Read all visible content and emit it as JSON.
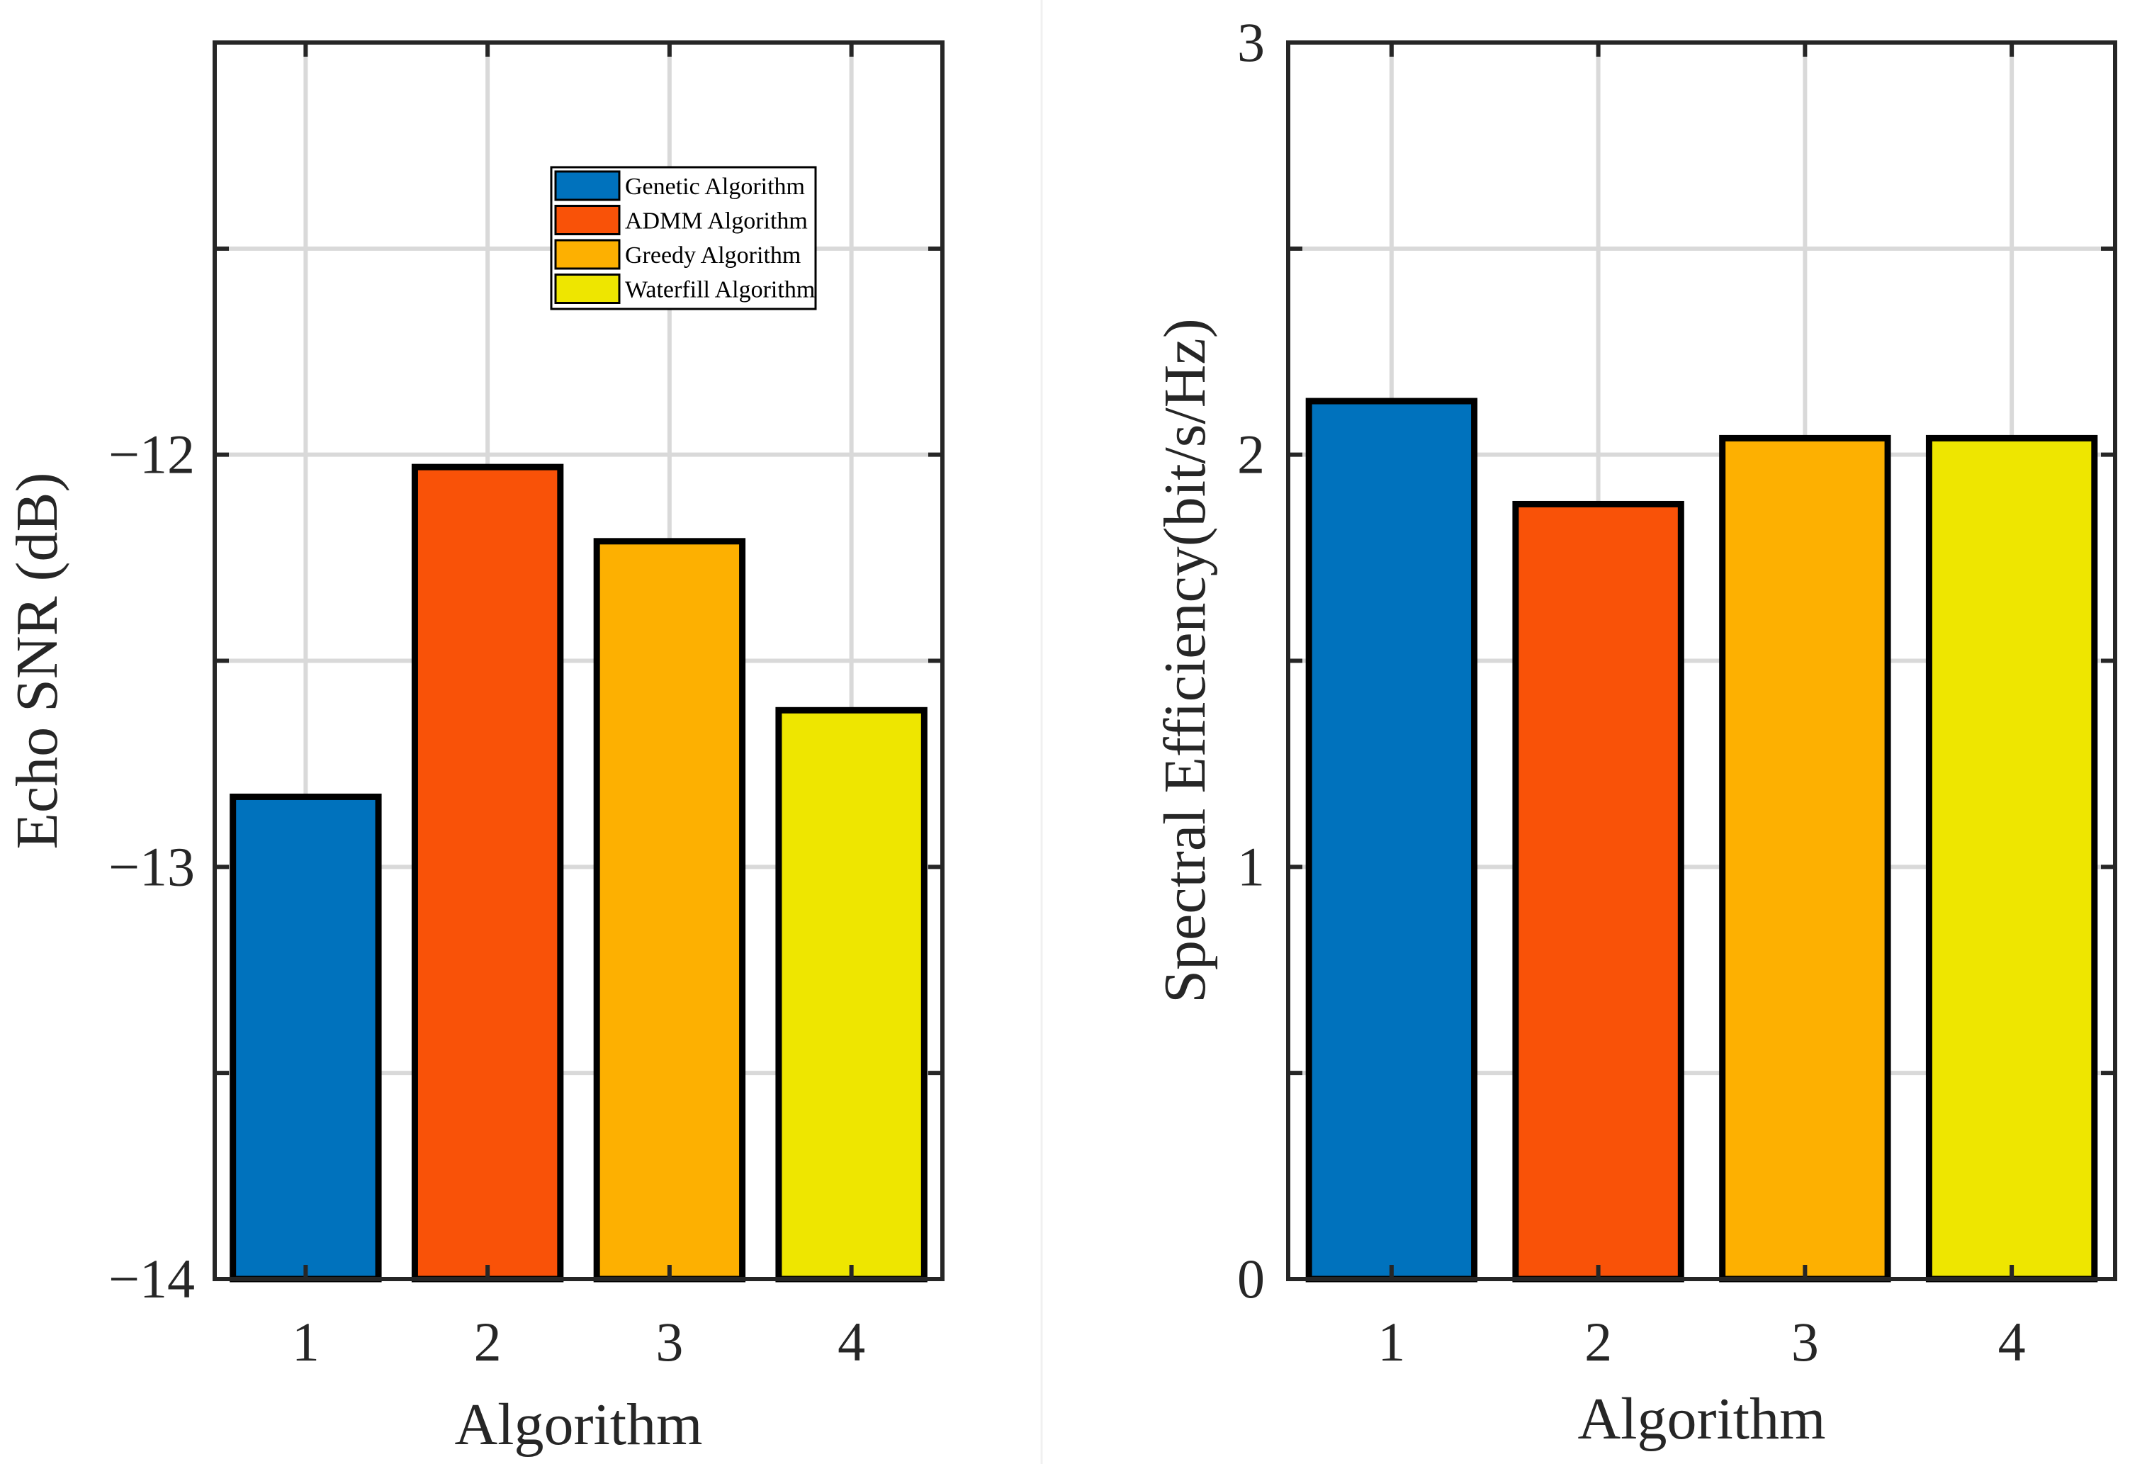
{
  "chart_data": [
    {
      "type": "bar",
      "panel": "left",
      "categories": [
        "1",
        "2",
        "3",
        "4"
      ],
      "series": [
        {
          "name": "Genetic Algorithm",
          "category": "1",
          "value": -12.83,
          "color": "#0072BD"
        },
        {
          "name": "ADMM Algorithm",
          "category": "2",
          "value": -12.03,
          "color": "#F95208"
        },
        {
          "name": "Greedy Algorithm",
          "category": "3",
          "value": -12.21,
          "color": "#FDB001"
        },
        {
          "name": "Waterfill Algorithm",
          "category": "4",
          "value": -12.62,
          "color": "#EEE600"
        }
      ],
      "values": [
        -12.83,
        -12.03,
        -12.21,
        -12.62
      ],
      "xlabel": "Algorithm",
      "ylabel": "Echo SNR (dB)",
      "ylim": [
        -14,
        -11
      ],
      "yticks": [
        -14,
        -13.5,
        -13,
        -12.5,
        -12,
        -11.5,
        -11
      ],
      "ytick_labels": [
        "−14",
        "",
        "−13",
        "",
        "−12",
        "",
        ""
      ],
      "baseline": -14,
      "grid": true,
      "legend": {
        "location": "top-right",
        "entries": [
          "Genetic Algorithm",
          "ADMM Algorithm",
          "Greedy Algorithm",
          "Waterfill Algorithm"
        ]
      }
    },
    {
      "type": "bar",
      "panel": "right",
      "categories": [
        "1",
        "2",
        "3",
        "4"
      ],
      "series": [
        {
          "name": "Genetic Algorithm",
          "category": "1",
          "value": 2.13,
          "color": "#0072BD"
        },
        {
          "name": "ADMM Algorithm",
          "category": "2",
          "value": 1.88,
          "color": "#F95208"
        },
        {
          "name": "Greedy Algorithm",
          "category": "3",
          "value": 2.04,
          "color": "#FDB001"
        },
        {
          "name": "Waterfill Algorithm",
          "category": "4",
          "value": 2.04,
          "color": "#EEE600"
        }
      ],
      "values": [
        2.13,
        1.88,
        2.04,
        2.04
      ],
      "xlabel": "Algorithm",
      "ylabel": "Spectral Efficiency(bit/s/Hz)",
      "ylim": [
        0,
        3
      ],
      "yticks": [
        0,
        0.5,
        1,
        1.5,
        2,
        2.5,
        3
      ],
      "ytick_labels": [
        "0",
        "",
        "1",
        "",
        "2",
        "",
        "3"
      ],
      "baseline": 0,
      "grid": true,
      "legend": null
    }
  ]
}
